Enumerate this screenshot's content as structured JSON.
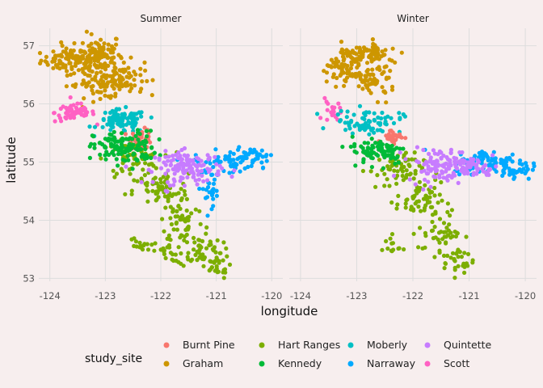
{
  "chart_data": {
    "type": "scatter",
    "xlabel": "longitude",
    "ylabel": "latitude",
    "xlim": [
      -124.2,
      -119.8
    ],
    "ylim": [
      52.95,
      57.3
    ],
    "xticks": [
      -124,
      -123,
      -122,
      -121,
      -120
    ],
    "xtick_labels": [
      "-124",
      "-123",
      "-122",
      "-121",
      "-120"
    ],
    "yticks": [
      53,
      54,
      55,
      56,
      57
    ],
    "ytick_labels": [
      "53",
      "54",
      "55",
      "56",
      "57"
    ],
    "grid": true,
    "legend": {
      "title": "study_site",
      "placement": "bottom",
      "columns": [
        [
          "Burnt Pine",
          "Graham"
        ],
        [
          "Hart Ranges",
          "Kennedy"
        ],
        [
          "Moberly",
          "Narraway"
        ],
        [
          "Quintette",
          "Scott"
        ]
      ]
    },
    "panels": [
      {
        "title": "Summer",
        "series": [
          {
            "name": "Graham",
            "color": "#cd9600",
            "clusters": [
              {
                "cx": -123.6,
                "cy": 56.75,
                "sx": 0.28,
                "sy": 0.1,
                "n": 90
              },
              {
                "cx": -123.1,
                "cy": 56.85,
                "sx": 0.2,
                "sy": 0.18,
                "n": 90
              },
              {
                "cx": -122.7,
                "cy": 56.45,
                "sx": 0.2,
                "sy": 0.15,
                "n": 70
              },
              {
                "cx": -123.1,
                "cy": 56.35,
                "sx": 0.3,
                "sy": 0.12,
                "n": 60
              }
            ]
          },
          {
            "name": "Scott",
            "color": "#ff61c3",
            "clusters": [
              {
                "cx": -123.55,
                "cy": 55.85,
                "sx": 0.18,
                "sy": 0.08,
                "n": 60
              }
            ]
          },
          {
            "name": "Moberly",
            "color": "#00bfc4",
            "clusters": [
              {
                "cx": -122.7,
                "cy": 55.7,
                "sx": 0.22,
                "sy": 0.1,
                "n": 90
              }
            ]
          },
          {
            "name": "Burnt Pine",
            "color": "#f8766d",
            "clusters": [
              {
                "cx": -122.35,
                "cy": 55.4,
                "sx": 0.1,
                "sy": 0.08,
                "n": 40
              }
            ]
          },
          {
            "name": "Hart Ranges",
            "color": "#7cae00",
            "clusters": [
              {
                "cx": -122.5,
                "cy": 55.05,
                "sx": 0.25,
                "sy": 0.15,
                "n": 70
              },
              {
                "cx": -122.0,
                "cy": 54.5,
                "sx": 0.25,
                "sy": 0.15,
                "n": 60
              },
              {
                "cx": -121.6,
                "cy": 54.0,
                "sx": 0.2,
                "sy": 0.2,
                "n": 50
              },
              {
                "cx": -121.3,
                "cy": 53.5,
                "sx": 0.2,
                "sy": 0.15,
                "n": 60
              },
              {
                "cx": -121.0,
                "cy": 53.2,
                "sx": 0.12,
                "sy": 0.1,
                "n": 25
              },
              {
                "cx": -122.4,
                "cy": 53.55,
                "sx": 0.1,
                "sy": 0.08,
                "n": 15
              },
              {
                "cx": -121.9,
                "cy": 53.45,
                "sx": 0.12,
                "sy": 0.08,
                "n": 15
              }
            ]
          },
          {
            "name": "Kennedy",
            "color": "#00ba38",
            "clusters": [
              {
                "cx": -122.65,
                "cy": 55.25,
                "sx": 0.28,
                "sy": 0.14,
                "n": 130
              }
            ]
          },
          {
            "name": "Narraway",
            "color": "#00a9ff",
            "clusters": [
              {
                "cx": -120.8,
                "cy": 55.0,
                "sx": 0.3,
                "sy": 0.1,
                "n": 60
              },
              {
                "cx": -121.1,
                "cy": 54.55,
                "sx": 0.12,
                "sy": 0.15,
                "n": 25
              },
              {
                "cx": -120.35,
                "cy": 55.1,
                "sx": 0.15,
                "sy": 0.07,
                "n": 25
              }
            ]
          },
          {
            "name": "Quintette",
            "color": "#c77cff",
            "clusters": [
              {
                "cx": -121.5,
                "cy": 54.9,
                "sx": 0.3,
                "sy": 0.14,
                "n": 130
              }
            ]
          }
        ]
      },
      {
        "title": "Winter",
        "series": [
          {
            "name": "Graham",
            "color": "#cd9600",
            "clusters": [
              {
                "cx": -123.0,
                "cy": 56.8,
                "sx": 0.25,
                "sy": 0.12,
                "n": 70
              },
              {
                "cx": -122.7,
                "cy": 56.4,
                "sx": 0.2,
                "sy": 0.15,
                "n": 60
              },
              {
                "cx": -123.3,
                "cy": 56.55,
                "sx": 0.2,
                "sy": 0.12,
                "n": 40
              },
              {
                "cx": -122.65,
                "cy": 56.9,
                "sx": 0.2,
                "sy": 0.1,
                "n": 25
              }
            ]
          },
          {
            "name": "Scott",
            "color": "#ff61c3",
            "clusters": [
              {
                "cx": -123.45,
                "cy": 55.85,
                "sx": 0.08,
                "sy": 0.1,
                "n": 20
              }
            ]
          },
          {
            "name": "Moberly",
            "color": "#00bfc4",
            "clusters": [
              {
                "cx": -122.8,
                "cy": 55.7,
                "sx": 0.3,
                "sy": 0.1,
                "n": 70
              }
            ]
          },
          {
            "name": "Burnt Pine",
            "color": "#f8766d",
            "clusters": [
              {
                "cx": -122.35,
                "cy": 55.45,
                "sx": 0.1,
                "sy": 0.06,
                "n": 30
              }
            ]
          },
          {
            "name": "Hart Ranges",
            "color": "#7cae00",
            "clusters": [
              {
                "cx": -122.3,
                "cy": 54.85,
                "sx": 0.25,
                "sy": 0.15,
                "n": 60
              },
              {
                "cx": -121.9,
                "cy": 54.35,
                "sx": 0.2,
                "sy": 0.15,
                "n": 50
              },
              {
                "cx": -121.5,
                "cy": 53.8,
                "sx": 0.2,
                "sy": 0.2,
                "n": 50
              },
              {
                "cx": -121.2,
                "cy": 53.3,
                "sx": 0.15,
                "sy": 0.12,
                "n": 30
              },
              {
                "cx": -122.4,
                "cy": 53.55,
                "sx": 0.08,
                "sy": 0.1,
                "n": 12
              }
            ]
          },
          {
            "name": "Kennedy",
            "color": "#00ba38",
            "clusters": [
              {
                "cx": -122.6,
                "cy": 55.2,
                "sx": 0.25,
                "sy": 0.12,
                "n": 80
              }
            ]
          },
          {
            "name": "Narraway",
            "color": "#00a9ff",
            "clusters": [
              {
                "cx": -120.6,
                "cy": 55.0,
                "sx": 0.35,
                "sy": 0.1,
                "n": 90
              },
              {
                "cx": -120.2,
                "cy": 54.85,
                "sx": 0.15,
                "sy": 0.08,
                "n": 30
              }
            ]
          },
          {
            "name": "Quintette",
            "color": "#c77cff",
            "clusters": [
              {
                "cx": -121.5,
                "cy": 54.95,
                "sx": 0.3,
                "sy": 0.14,
                "n": 110
              },
              {
                "cx": -120.9,
                "cy": 54.9,
                "sx": 0.2,
                "sy": 0.08,
                "n": 40
              }
            ]
          }
        ]
      }
    ]
  }
}
